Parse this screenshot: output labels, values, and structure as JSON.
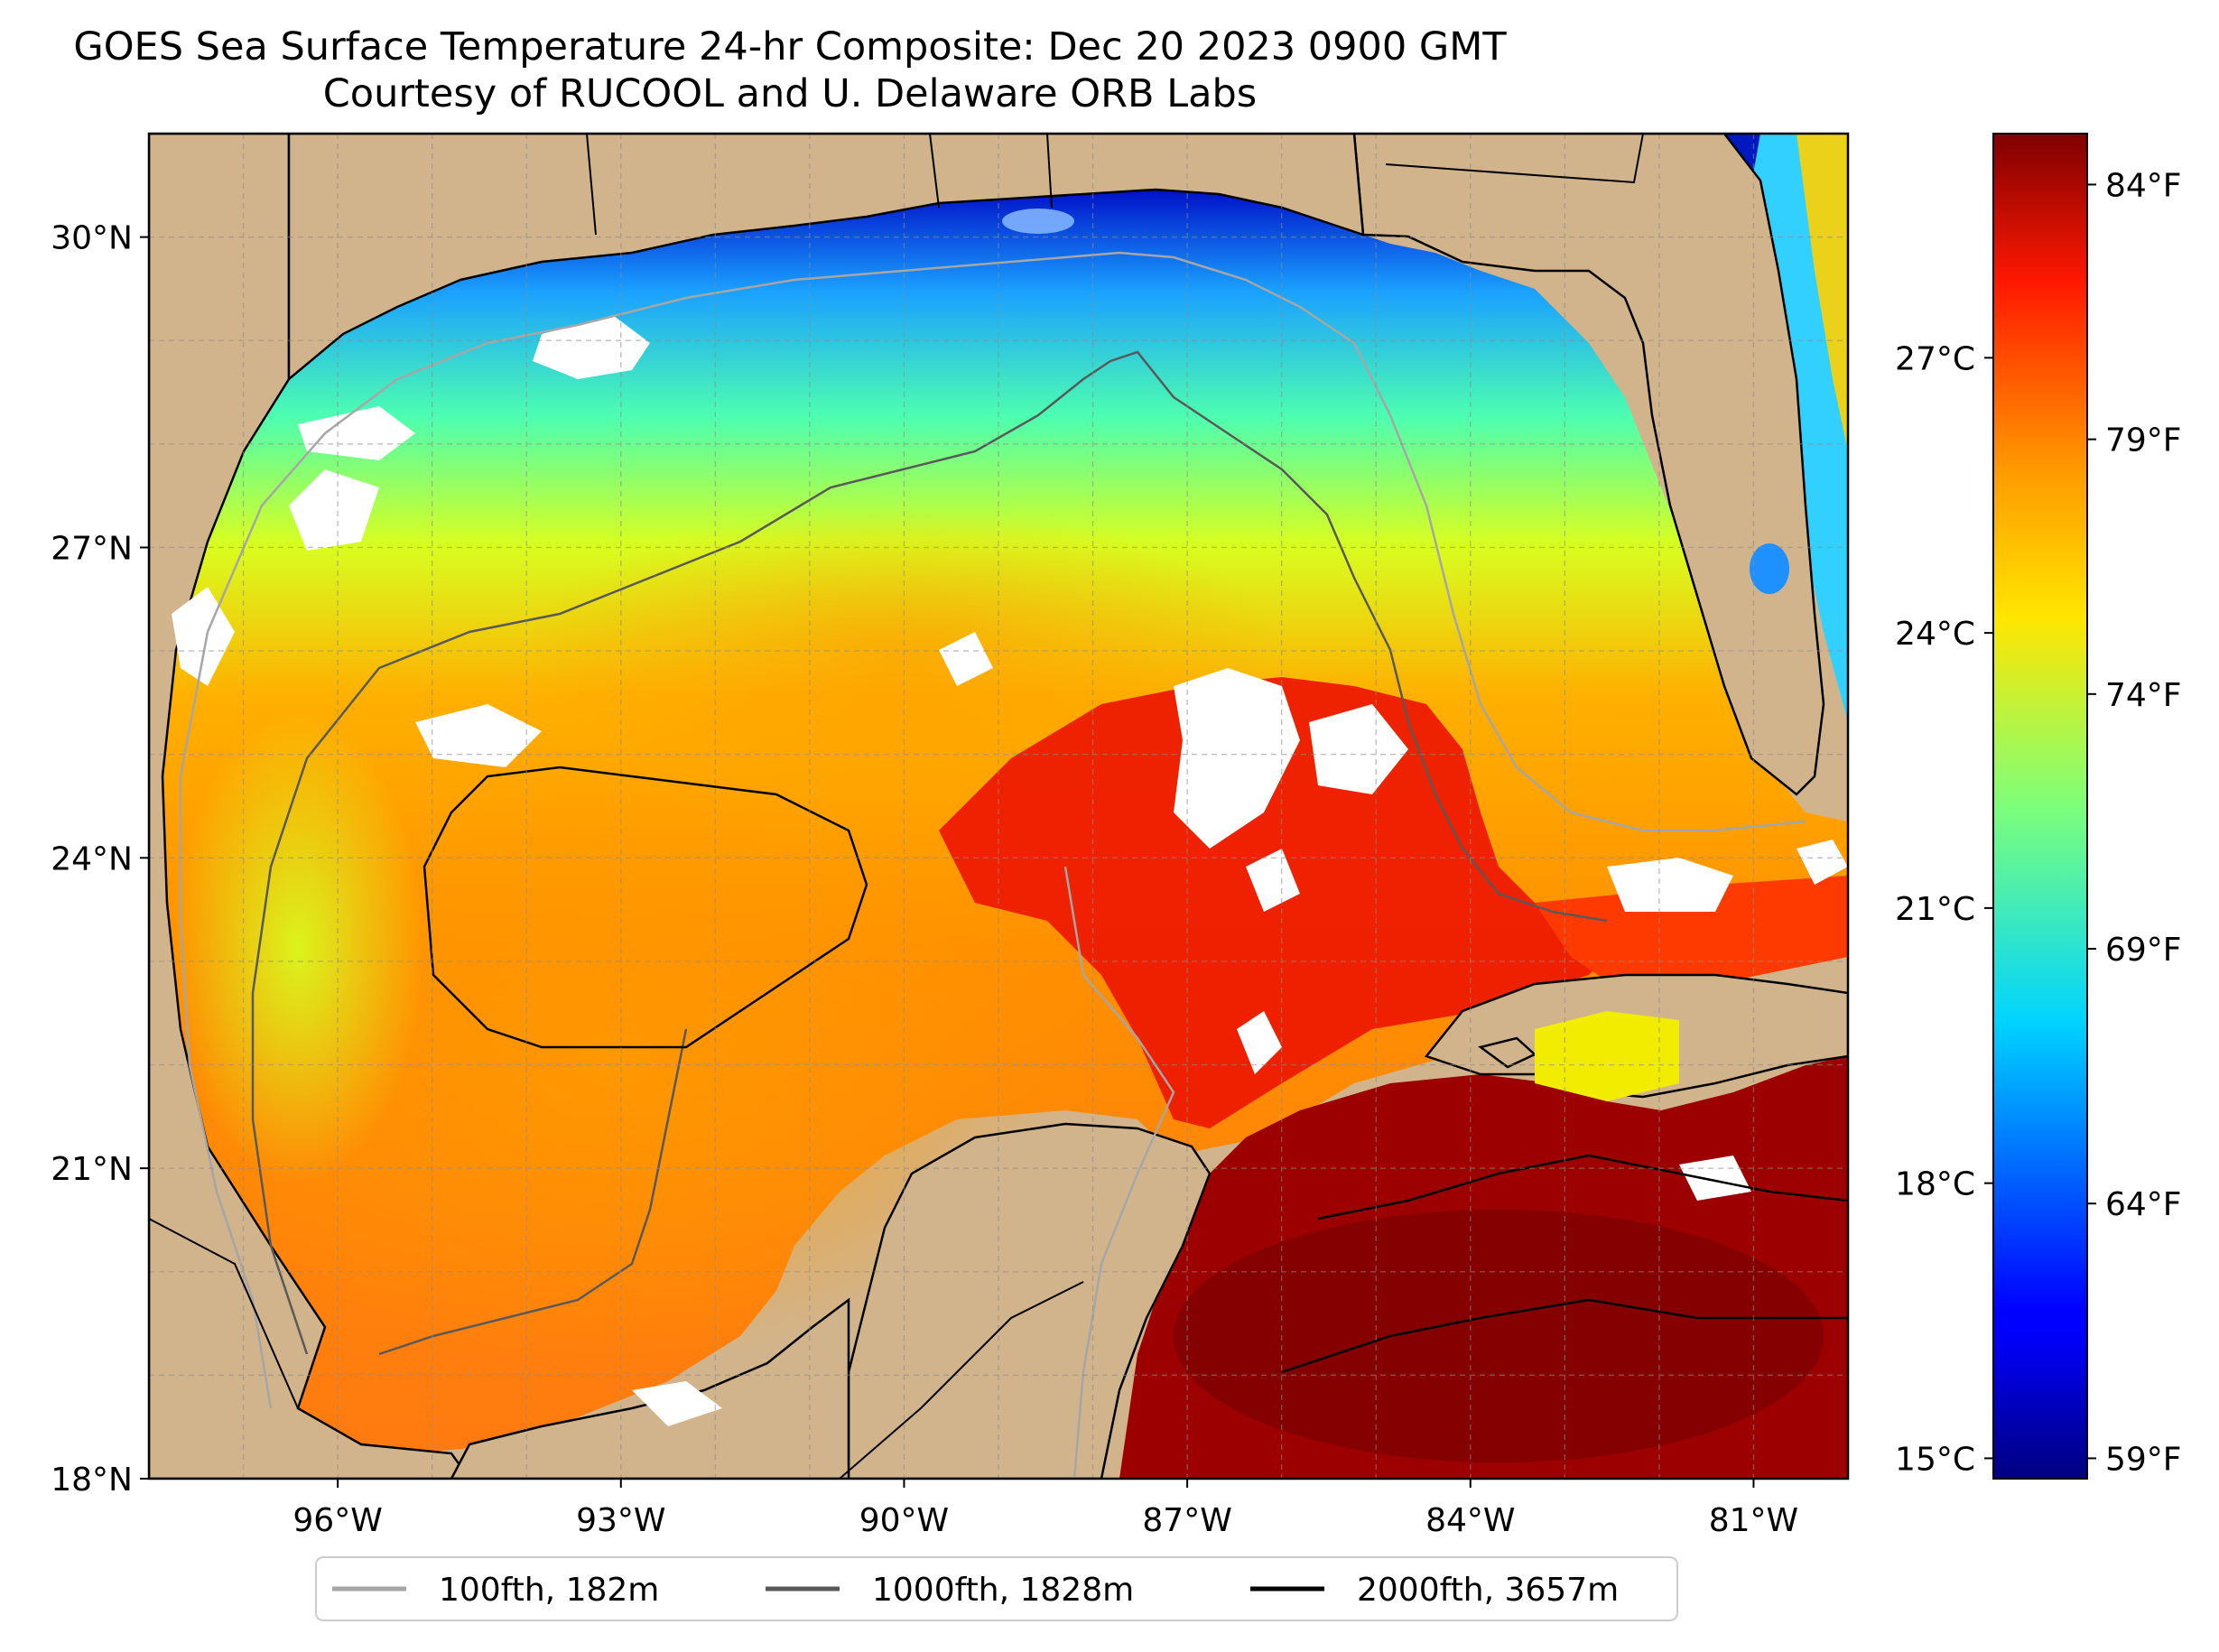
{
  "title": {
    "line1": "GOES Sea Surface Temperature 24-hr Composite: Dec 20 2023 0900 GMT",
    "line2": "Courtesy of RUCOOL and U. Delaware ORB Labs"
  },
  "map": {
    "lon_range": [
      -98,
      -80
    ],
    "lat_range": [
      18,
      31
    ],
    "lat_ticks": [
      {
        "value": 30,
        "label": "30°N"
      },
      {
        "value": 27,
        "label": "27°N"
      },
      {
        "value": 24,
        "label": "24°N"
      },
      {
        "value": 21,
        "label": "21°N"
      },
      {
        "value": 18,
        "label": "18°N"
      }
    ],
    "lon_ticks": [
      {
        "value": -96,
        "label": "96°W"
      },
      {
        "value": -93,
        "label": "93°W"
      },
      {
        "value": -90,
        "label": "90°W"
      },
      {
        "value": -87,
        "label": "87°W"
      },
      {
        "value": -84,
        "label": "84°W"
      },
      {
        "value": -81,
        "label": "81°W"
      }
    ],
    "gridlines": true,
    "land_color": "#d2b48c",
    "cloud_color": "#ffffff"
  },
  "colorbar": {
    "colormap": "jet",
    "range_f": [
      58.6,
      85
    ],
    "fahrenheit_ticks": [
      {
        "value": 84,
        "label": "84°F"
      },
      {
        "value": 79,
        "label": "79°F"
      },
      {
        "value": 74,
        "label": "74°F"
      },
      {
        "value": 69,
        "label": "69°F"
      },
      {
        "value": 64,
        "label": "64°F"
      },
      {
        "value": 59,
        "label": "59°F"
      }
    ],
    "celsius_ticks": [
      {
        "value": 27,
        "label": "27°C"
      },
      {
        "value": 24,
        "label": "24°C"
      },
      {
        "value": 21,
        "label": "21°C"
      },
      {
        "value": 18,
        "label": "18°C"
      },
      {
        "value": 15,
        "label": "15°C"
      }
    ]
  },
  "legend": {
    "placement": "bottom-center",
    "items": [
      {
        "label": "100fth, 182m",
        "color": "#a6a6a6"
      },
      {
        "label": "1000fth, 1828m",
        "color": "#595959"
      },
      {
        "label": "2000fth, 3657m",
        "color": "#000000"
      }
    ]
  }
}
